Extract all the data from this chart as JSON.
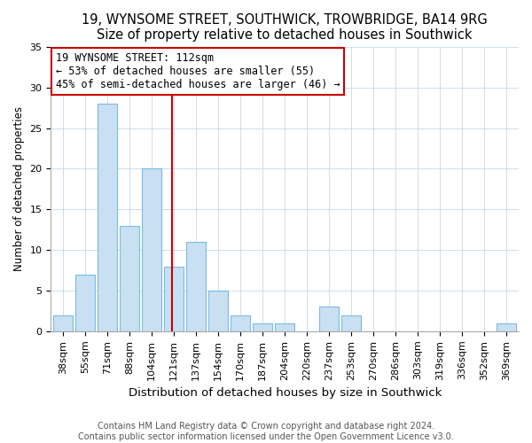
{
  "title": "19, WYNSOME STREET, SOUTHWICK, TROWBRIDGE, BA14 9RG",
  "subtitle": "Size of property relative to detached houses in Southwick",
  "xlabel": "Distribution of detached houses by size in Southwick",
  "ylabel": "Number of detached properties",
  "bar_labels": [
    "38sqm",
    "55sqm",
    "71sqm",
    "88sqm",
    "104sqm",
    "121sqm",
    "137sqm",
    "154sqm",
    "170sqm",
    "187sqm",
    "204sqm",
    "220sqm",
    "237sqm",
    "253sqm",
    "270sqm",
    "286sqm",
    "303sqm",
    "319sqm",
    "336sqm",
    "352sqm",
    "369sqm"
  ],
  "bar_values": [
    2,
    7,
    28,
    13,
    20,
    8,
    11,
    5,
    2,
    1,
    1,
    0,
    3,
    2,
    0,
    0,
    0,
    0,
    0,
    0,
    1
  ],
  "bar_color": "#c9dff2",
  "bar_edge_color": "#7bbce0",
  "reference_line_color": "#cc0000",
  "annotation_text": "19 WYNSOME STREET: 112sqm\n← 53% of detached houses are smaller (55)\n45% of semi-detached houses are larger (46) →",
  "annotation_box_color": "white",
  "annotation_box_edge": "#cc0000",
  "ylim": [
    0,
    35
  ],
  "yticks": [
    0,
    5,
    10,
    15,
    20,
    25,
    30,
    35
  ],
  "footer1": "Contains HM Land Registry data © Crown copyright and database right 2024.",
  "footer2": "Contains public sector information licensed under the Open Government Licence v3.0.",
  "title_fontsize": 10.5,
  "subtitle_fontsize": 9.5,
  "xlabel_fontsize": 9.5,
  "ylabel_fontsize": 8.5,
  "tick_fontsize": 8,
  "annotation_fontsize": 8.5,
  "footer_fontsize": 7
}
